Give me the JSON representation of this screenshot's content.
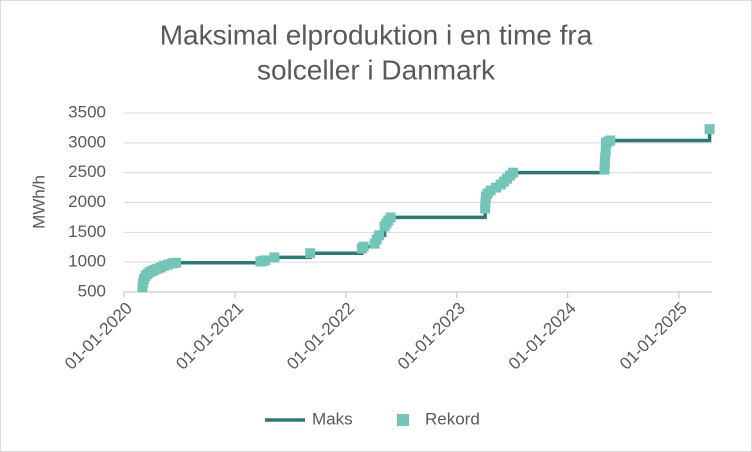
{
  "chart_data": {
    "type": "line",
    "title": [
      "Maksimal elproduktion i en time fra",
      "solceller i Danmark"
    ],
    "y_label": "MWh/h",
    "xlim": [
      "2020-01-01",
      "2025-04-20"
    ],
    "xticks": [
      {
        "value": "2020-01-01",
        "label": "01-01-2020"
      },
      {
        "value": "2021-01-01",
        "label": "01-01-2021"
      },
      {
        "value": "2022-01-01",
        "label": "01-01-2022"
      },
      {
        "value": "2023-01-01",
        "label": "01-01-2023"
      },
      {
        "value": "2024-01-01",
        "label": "01-01-2024"
      },
      {
        "value": "2025-01-01",
        "label": "01-01-2025"
      }
    ],
    "ylim": [
      500,
      3500
    ],
    "yticks": [
      500,
      1000,
      1500,
      2000,
      2500,
      3000,
      3500
    ],
    "grid": true,
    "legend": "bottom",
    "series": [
      {
        "name": "Maks",
        "kind": "step",
        "color": "#2e7a73",
        "x": [
          "2020-03-02",
          "2020-03-04",
          "2020-03-07",
          "2020-03-12",
          "2020-03-18",
          "2020-03-25",
          "2020-04-02",
          "2020-04-10",
          "2020-04-20",
          "2020-05-01",
          "2020-05-12",
          "2020-05-25",
          "2020-06-08",
          "2020-06-20",
          "2021-03-25",
          "2021-04-02",
          "2021-04-10",
          "2021-05-10",
          "2021-09-05",
          "2022-02-22",
          "2022-02-28",
          "2022-04-05",
          "2022-04-12",
          "2022-04-20",
          "2022-05-08",
          "2022-05-14",
          "2022-05-20",
          "2022-05-28",
          "2023-04-04",
          "2023-04-05",
          "2023-04-07",
          "2023-04-12",
          "2023-04-22",
          "2023-05-10",
          "2023-05-25",
          "2023-06-05",
          "2023-06-15",
          "2023-06-25",
          "2023-07-05",
          "2024-05-01",
          "2024-05-02",
          "2024-05-03",
          "2024-05-05",
          "2024-05-06",
          "2024-05-12",
          "2024-05-20",
          "2025-04-12"
        ],
        "values": [
          580,
          650,
          720,
          770,
          800,
          830,
          850,
          870,
          890,
          910,
          940,
          960,
          980,
          990,
          1010,
          1020,
          1030,
          1080,
          1150,
          1230,
          1260,
          1310,
          1380,
          1450,
          1600,
          1650,
          1700,
          1750,
          1900,
          2000,
          2100,
          2150,
          2200,
          2250,
          2300,
          2350,
          2400,
          2450,
          2500,
          2550,
          2650,
          2750,
          2850,
          3000,
          3020,
          3040,
          3230
        ]
      },
      {
        "name": "Rekord",
        "kind": "marker",
        "color": "#73c5b8",
        "x": [
          "2020-03-02",
          "2020-03-04",
          "2020-03-07",
          "2020-03-12",
          "2020-03-18",
          "2020-03-25",
          "2020-04-02",
          "2020-04-10",
          "2020-04-20",
          "2020-05-01",
          "2020-05-12",
          "2020-05-25",
          "2020-06-08",
          "2020-06-20",
          "2021-03-25",
          "2021-04-02",
          "2021-04-10",
          "2021-05-10",
          "2021-09-05",
          "2022-02-22",
          "2022-02-28",
          "2022-04-05",
          "2022-04-12",
          "2022-04-20",
          "2022-05-08",
          "2022-05-14",
          "2022-05-20",
          "2022-05-28",
          "2023-04-04",
          "2023-04-05",
          "2023-04-07",
          "2023-04-12",
          "2023-04-22",
          "2023-05-10",
          "2023-05-25",
          "2023-06-05",
          "2023-06-15",
          "2023-06-25",
          "2023-07-05",
          "2024-05-01",
          "2024-05-02",
          "2024-05-03",
          "2024-05-05",
          "2024-05-06",
          "2024-05-12",
          "2024-05-20",
          "2025-04-12"
        ],
        "values": [
          580,
          650,
          720,
          770,
          800,
          830,
          850,
          870,
          890,
          910,
          940,
          960,
          980,
          990,
          1010,
          1020,
          1030,
          1080,
          1150,
          1230,
          1260,
          1310,
          1380,
          1450,
          1600,
          1650,
          1700,
          1750,
          1900,
          2000,
          2100,
          2150,
          2200,
          2250,
          2300,
          2350,
          2400,
          2450,
          2500,
          2550,
          2650,
          2750,
          2850,
          3000,
          3020,
          3040,
          3230
        ]
      }
    ]
  }
}
